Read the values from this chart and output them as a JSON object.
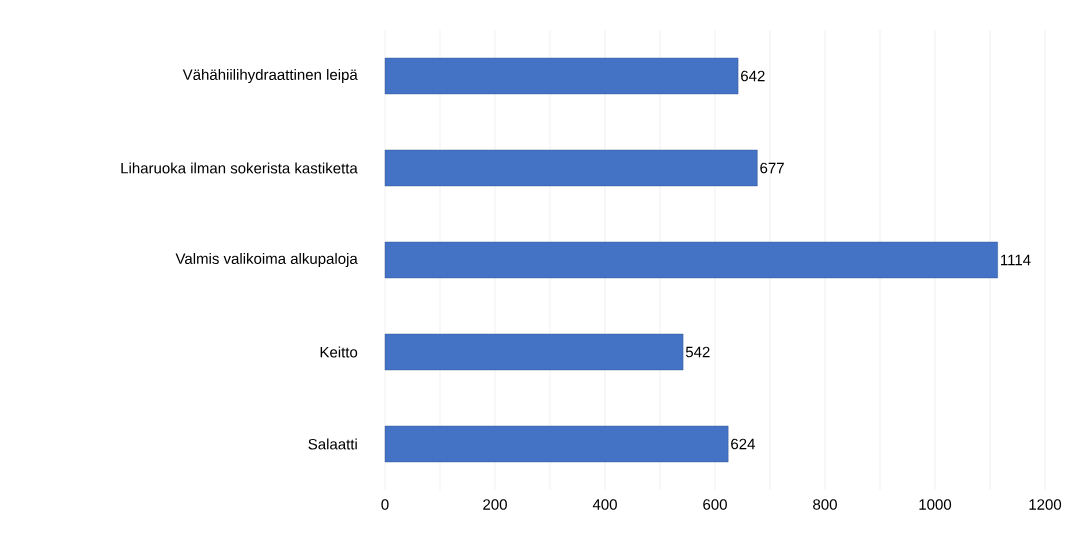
{
  "chart_data": {
    "type": "bar",
    "orientation": "horizontal",
    "categories": [
      "Vähähiilihydraattinen leipä",
      "Liharuoka ilman sokerista kastiketta",
      "Valmis valikoima alkupaloja",
      "Keitto",
      "Salaatti"
    ],
    "values": [
      642,
      677,
      1114,
      542,
      624
    ],
    "color": "#4472c4",
    "xlim": [
      0,
      1200
    ],
    "xticks": [
      0,
      {
        "value": 100,
        "label": null
      },
      200,
      {
        "value": 300,
        "label": null
      },
      400,
      {
        "value": 500,
        "label": null
      },
      600,
      {
        "value": 700,
        "label": null
      },
      800,
      {
        "value": 900,
        "label": null
      },
      1000,
      {
        "value": 1100,
        "label": null
      },
      1200
    ],
    "grid": "x",
    "data_labels": true
  }
}
